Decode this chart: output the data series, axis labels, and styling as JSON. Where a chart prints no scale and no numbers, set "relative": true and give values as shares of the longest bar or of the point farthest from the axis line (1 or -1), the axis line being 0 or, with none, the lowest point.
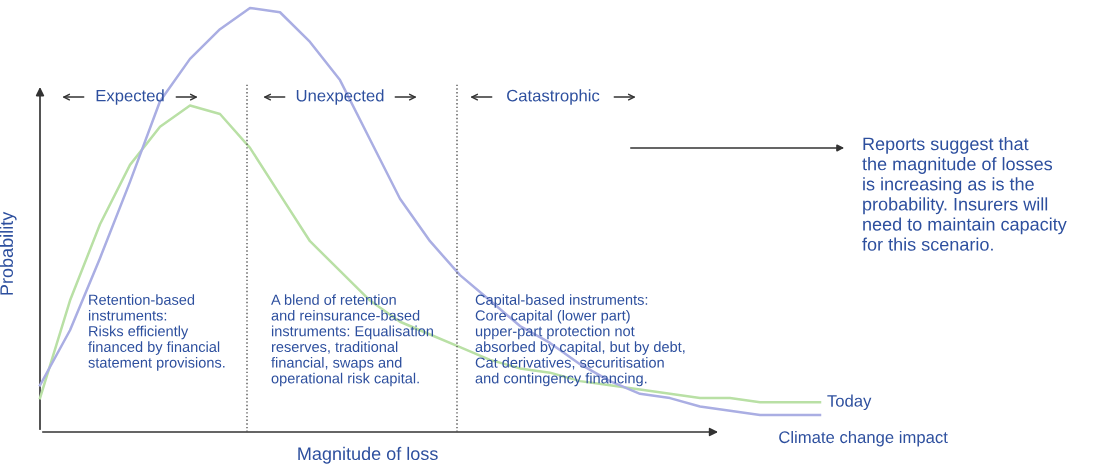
{
  "chart_data": {
    "type": "line",
    "relative": true,
    "xlabel": "Magnitude of loss",
    "ylabel": "Probability",
    "marker": "none",
    "line_style": "solid",
    "categories": [
      null,
      null,
      null,
      null,
      null,
      null,
      null,
      null,
      null,
      null,
      null,
      null,
      null,
      null,
      null,
      null,
      null,
      null,
      null,
      null,
      null,
      null,
      null,
      null,
      null,
      null,
      null
    ],
    "series": [
      {
        "name": "Today",
        "color": "#b9e0a5",
        "values": [
          0.08,
          0.31,
          0.49,
          0.63,
          0.72,
          0.77,
          0.75,
          0.67,
          0.56,
          0.45,
          0.38,
          0.31,
          0.26,
          0.23,
          0.2,
          0.17,
          0.15,
          0.14,
          0.12,
          0.11,
          0.1,
          0.09,
          0.08,
          0.08,
          0.07,
          0.07,
          0.07
        ]
      },
      {
        "name": "Climate change impact",
        "color": "#aaaee3",
        "values": [
          0.11,
          0.24,
          0.41,
          0.59,
          0.78,
          0.88,
          0.95,
          1.0,
          0.99,
          0.92,
          0.83,
          0.69,
          0.55,
          0.45,
          0.37,
          0.31,
          0.25,
          0.21,
          0.16,
          0.12,
          0.09,
          0.08,
          0.06,
          0.05,
          0.04,
          0.04,
          0.04
        ]
      }
    ],
    "annotations": [
      "Expected",
      "Unexpected",
      "Catastrophic",
      "Retention-based\ninstruments:\nRisks efficiently\nfinanced by financial\nstatement provisions.",
      "A blend of retention\nand reinsurance-based\ninstruments: Equalisation\nreserves, traditional\nfinancial, swaps and\noperational risk capital.",
      "Capital-based instruments:\nCore capital (lower part)\nupper-part protection not\nabsorbed by capital, but by debt,\nCat derivatives, securitisation\nand contingency financing.",
      "Reports suggest that\nthe magnitude of losses\nis increasing as is the\nprobability. Insurers will\nneed to maintain capacity\nfor this scenario."
    ]
  }
}
